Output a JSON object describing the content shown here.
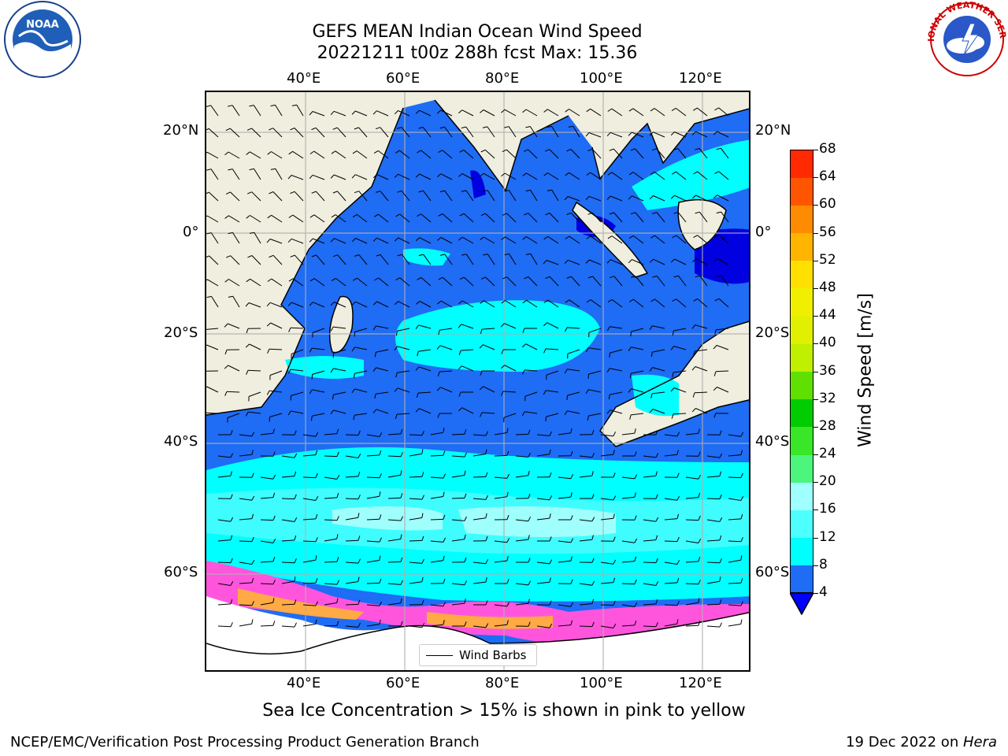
{
  "title": {
    "line1": "GEFS MEAN Indian Ocean Wind Speed",
    "line2": "20221211 t00z 288h fcst   Max: 15.36"
  },
  "logos": {
    "left": "noaa-logo",
    "right": "national-weather-service-logo",
    "left_text": "NOAA",
    "right_text": "NATIONAL WEATHER SERVICE"
  },
  "map": {
    "lon_ticks_top": [
      "40°E",
      "60°E",
      "80°E",
      "100°E",
      "120°E"
    ],
    "lon_ticks_bottom": [
      "40°E",
      "60°E",
      "80°E",
      "100°E",
      "120°E"
    ],
    "lat_ticks_left": [
      "20°N",
      "0°",
      "20°S",
      "40°S",
      "60°S"
    ],
    "lat_ticks_right": [
      "20°N",
      "0°",
      "20°S",
      "40°S",
      "60°S"
    ],
    "lon_range": [
      20,
      130
    ],
    "lat_range": [
      -72,
      28
    ],
    "colors": {
      "land": "#efeedf",
      "ocean_4_8": "#1f6cf5",
      "ocean_8_12": "#00ffff",
      "ocean_12_16": "#3ffdff",
      "ocean_16_20": "#9ffffd",
      "low_wind": "#0000e0",
      "sea_ice_pink": "#ff55dd",
      "sea_ice_orange": "#ffaa44",
      "ice_white": "#ffffff"
    },
    "legend": {
      "label": "Wind Barbs"
    }
  },
  "colorbar": {
    "label": "Wind Speed [m/s]",
    "ticks": [
      "4",
      "8",
      "12",
      "16",
      "20",
      "24",
      "28",
      "32",
      "36",
      "40",
      "44",
      "48",
      "52",
      "56",
      "60",
      "64",
      "68"
    ],
    "colors": [
      "#1f6cf5",
      "#00ffff",
      "#4dffff",
      "#a0ffff",
      "#4cf57c",
      "#39e628",
      "#00cc00",
      "#60e000",
      "#c0ef00",
      "#e0f000",
      "#f0ef00",
      "#ffe000",
      "#ffb400",
      "#ff8c00",
      "#ff5500",
      "#ff2a00",
      "#ff0000"
    ],
    "extend_color": "#0000ff"
  },
  "note": "Sea Ice Concentration > 15% is shown in pink to yellow",
  "footer": {
    "left": "NCEP/EMC/Verification Post Processing Product Generation Branch",
    "right_date": "19 Dec 2022 on ",
    "right_host": "Hera"
  }
}
